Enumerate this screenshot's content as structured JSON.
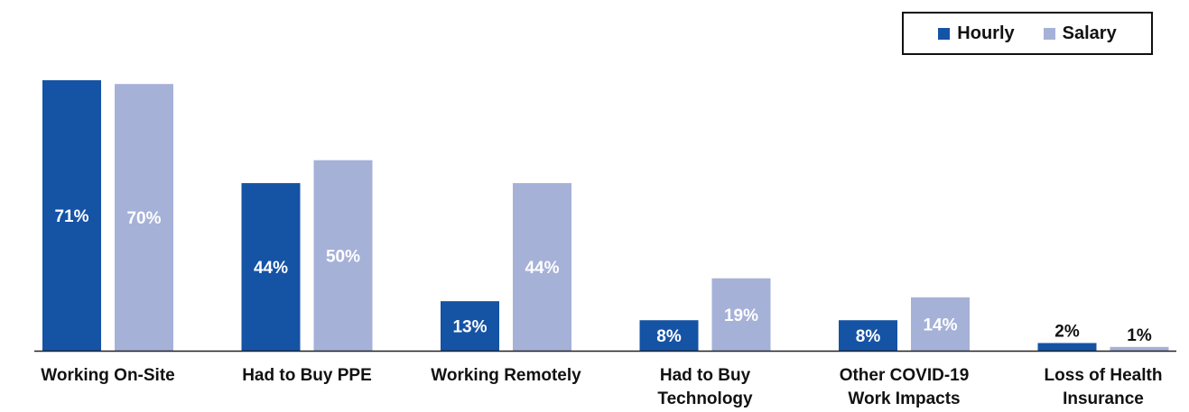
{
  "chart_data": {
    "type": "bar",
    "categories": [
      "Working On-Site",
      "Had to Buy PPE",
      "Working Remotely",
      "Had to Buy Technology",
      "Other COVID-19 Work Impacts",
      "Loss of Health Insurance"
    ],
    "category_lines": [
      [
        "Working On-Site"
      ],
      [
        "Had to Buy PPE"
      ],
      [
        "Working Remotely"
      ],
      [
        "Had to Buy",
        "Technology"
      ],
      [
        "Other COVID-19",
        "Work Impacts"
      ],
      [
        "Loss of Health",
        "Insurance"
      ]
    ],
    "series": [
      {
        "name": "Hourly",
        "color": "#1553a5",
        "values": [
          71,
          44,
          13,
          8,
          8,
          2
        ],
        "labels": [
          "71%",
          "44%",
          "13%",
          "8%",
          "8%",
          "2%"
        ]
      },
      {
        "name": "Salary",
        "color": "#a6b1d8",
        "values": [
          70,
          50,
          44,
          19,
          14,
          1
        ],
        "labels": [
          "70%",
          "50%",
          "44%",
          "19%",
          "14%",
          "1%"
        ]
      }
    ],
    "ylim": [
      0,
      71
    ],
    "title": "",
    "xlabel": "",
    "ylabel": "",
    "grid": false,
    "legend_position": "top-right"
  }
}
